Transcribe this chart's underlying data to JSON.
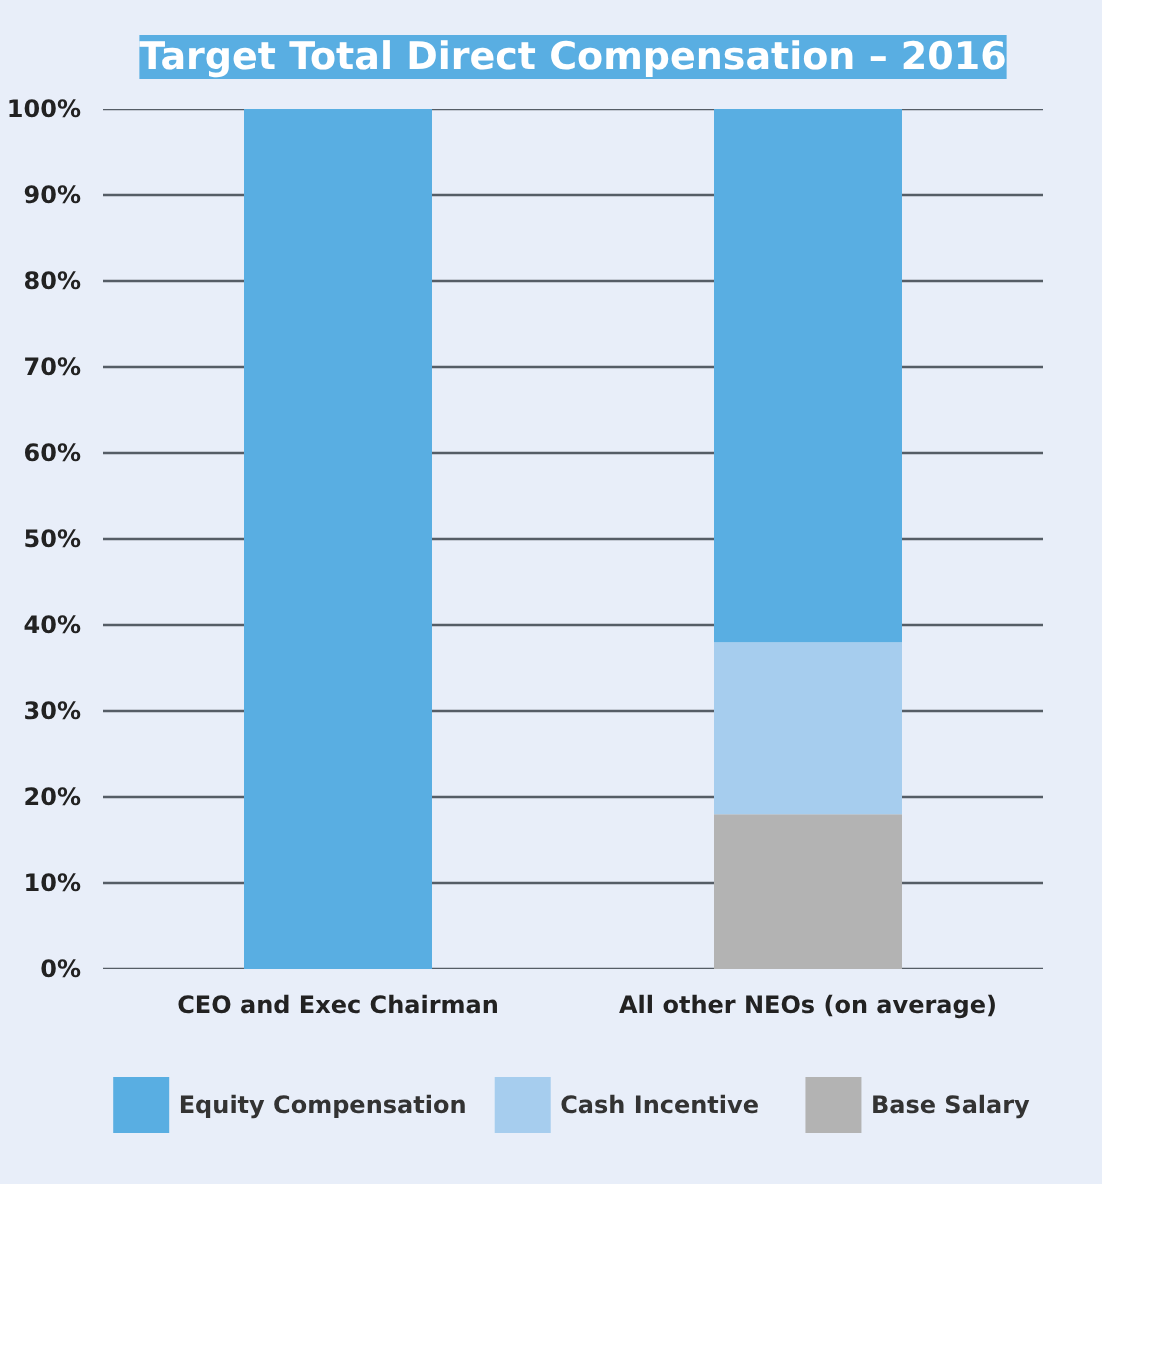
{
  "chart_data": {
    "type": "bar",
    "title": "Target Total Direct Compensation – 2016",
    "categories": [
      "CEO and Exec Chairman",
      "All other NEOs (on average)"
    ],
    "stacked": true,
    "series": [
      {
        "name": "Base Salary",
        "color": "#b3b3b3",
        "values": [
          0,
          18
        ]
      },
      {
        "name": "Cash Incentive",
        "color": "#a6cdee",
        "values": [
          0,
          20
        ]
      },
      {
        "name": "Equity Compensation",
        "color": "#59aee2",
        "values": [
          100,
          62
        ]
      }
    ],
    "ylim": [
      0,
      100
    ],
    "yticks": [
      {
        "value": 0,
        "label": "0%"
      },
      {
        "value": 10,
        "label": "10%"
      },
      {
        "value": 20,
        "label": "20%"
      },
      {
        "value": 30,
        "label": "30%"
      },
      {
        "value": 40,
        "label": "40%"
      },
      {
        "value": 50,
        "label": "50%"
      },
      {
        "value": 60,
        "label": "60%"
      },
      {
        "value": 70,
        "label": "70%"
      },
      {
        "value": 80,
        "label": "80%"
      },
      {
        "value": 90,
        "label": "90%"
      },
      {
        "value": 100,
        "label": "100%"
      }
    ],
    "grid": "y",
    "legend": "bottom"
  }
}
